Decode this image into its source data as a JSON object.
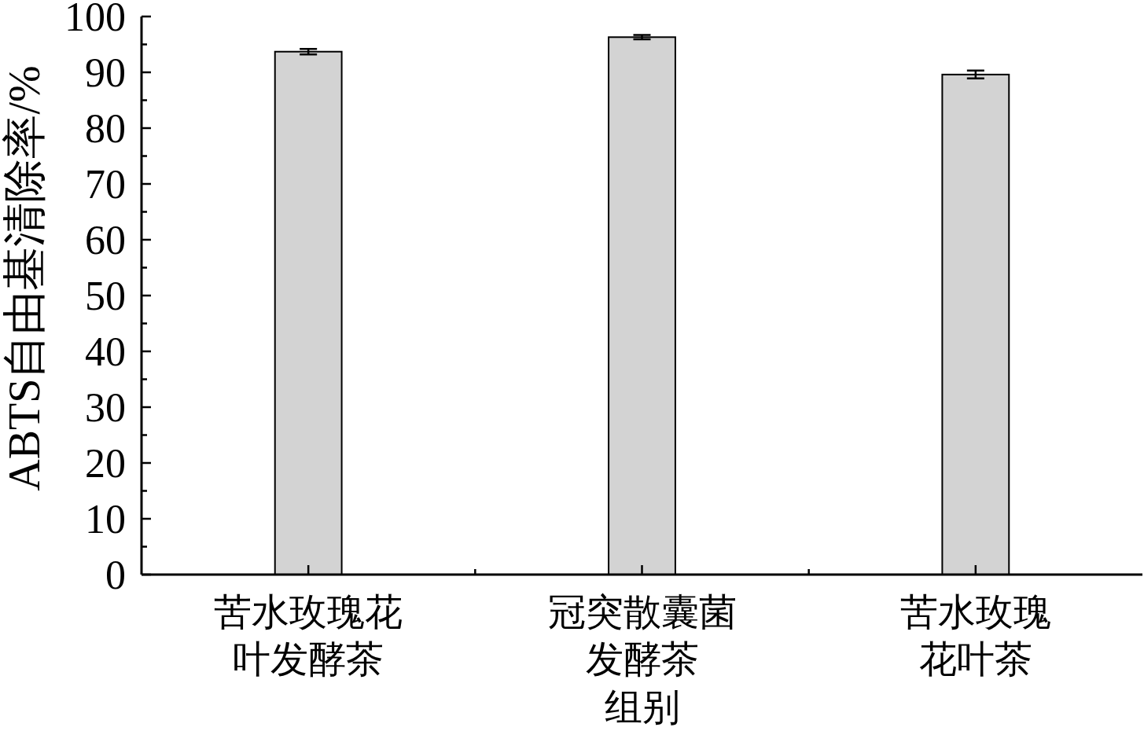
{
  "chart_data": {
    "type": "bar",
    "xlabel": "组别",
    "ylabel": "ABTS自由基清除率/%",
    "categories": [
      "苦水玫瑰花叶发酵茶",
      "冠突散囊菌发酵茶",
      "苦水玫瑰花叶茶"
    ],
    "values": [
      93.7,
      96.3,
      89.6
    ],
    "errors": [
      0.5,
      0.4,
      0.7
    ],
    "color": "#d3d3d3",
    "ylim": [
      0,
      100
    ],
    "yticks": [
      0,
      {
        "value": 5,
        "label": null
      },
      10,
      {
        "value": 15,
        "label": null
      },
      20,
      {
        "value": 25,
        "label": null
      },
      30,
      {
        "value": 35,
        "label": null
      },
      40,
      {
        "value": 45,
        "label": null
      },
      50,
      {
        "value": 55,
        "label": null
      },
      60,
      {
        "value": 65,
        "label": null
      },
      70,
      {
        "value": 75,
        "label": null
      },
      80,
      {
        "value": 85,
        "label": null
      },
      90,
      {
        "value": 95,
        "label": null
      },
      100
    ]
  }
}
